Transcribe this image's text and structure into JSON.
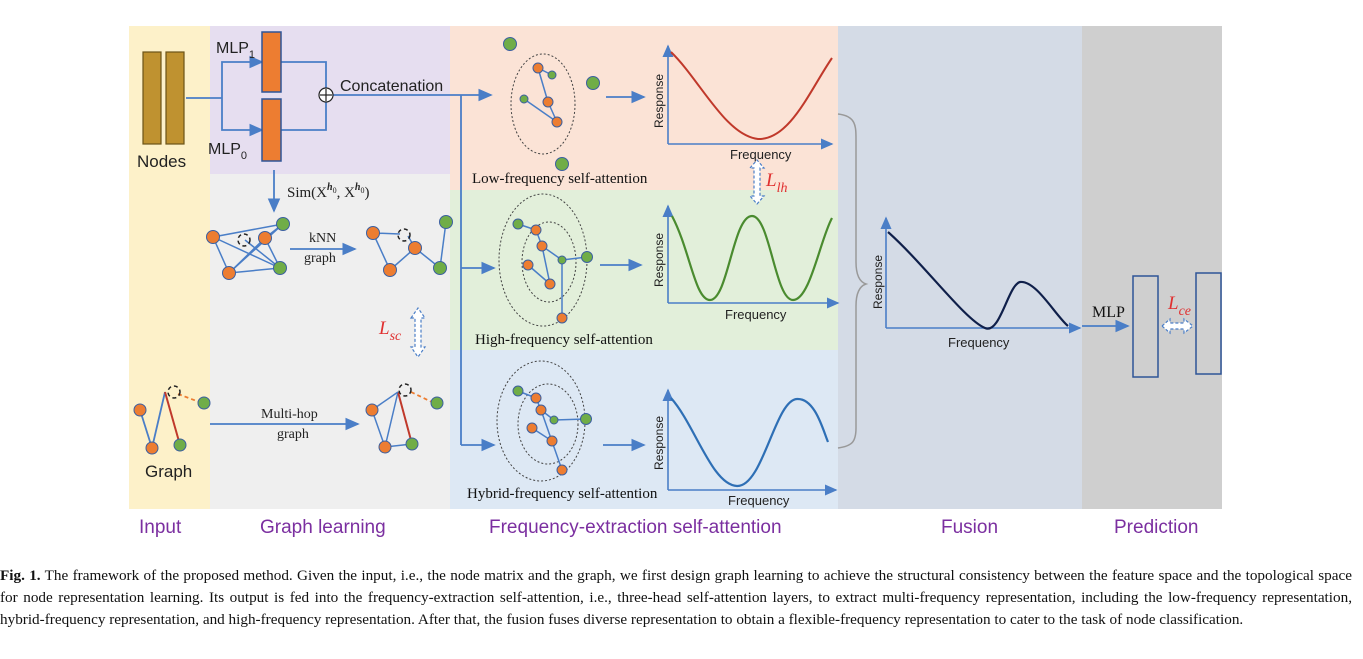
{
  "sections": {
    "input": "Input",
    "graph_learning": "Graph learning",
    "frequency_extraction": "Frequency-extraction self-attention",
    "fusion": "Fusion",
    "prediction": "Prediction"
  },
  "input_panel": {
    "nodes_label": "Nodes",
    "graph_label": "Graph"
  },
  "graph_learning_panel": {
    "mlp1_base": "MLP",
    "mlp1_sub": "1",
    "mlp0_base": "MLP",
    "mlp0_sub": "0",
    "concat_label": "Concatenation",
    "sim_label": "Sim(X",
    "sim_sup": "h",
    "sim_subsup": "0",
    "sim_mid": ", X",
    "sim_end": ")",
    "knn_line1": "kNN",
    "knn_line2": "graph",
    "multihop_line1": "Multi-hop",
    "multihop_line2": "graph",
    "lsc_base": "L",
    "lsc_sub": "sc"
  },
  "frequency_panel": {
    "low_title": "Low-frequency self-attention",
    "high_title": "High-frequency self-attention",
    "hybrid_title": "Hybrid-frequency self-attention",
    "axis_response": "Response",
    "axis_frequency": "Frequency",
    "llh_base": "L",
    "llh_sub": "lh"
  },
  "fusion_panel": {
    "axis_response": "Response",
    "axis_frequency": "Frequency"
  },
  "prediction_panel": {
    "mlp_label": "MLP",
    "lce_base": "L",
    "lce_sub": "ce"
  },
  "caption": {
    "fig_label": "Fig. 1.",
    "text": "The framework of the proposed method. Given the input, i.e., the node matrix and the graph, we first design graph learning to achieve the structural consistency between the feature space and the topological space for node representation learning. Its output is fed into the frequency-extraction self-attention, i.e., three-head self-attention layers, to extract multi-frequency representation, including the low-frequency representation, hybrid-frequency representation, and high-frequency representation. After that, the fusion fuses diverse representation to obtain a flexible-frequency representation to cater to the task of node classification."
  },
  "colors": {
    "input_bg": "#fdf1c9",
    "mlp_bg": "#e6def0",
    "graph_bg": "#efefef",
    "low_bg": "#fbe3d6",
    "high_bg": "#e2efda",
    "hybrid_bg": "#dde8f4",
    "fusion_bg": "#d4dbe6",
    "prediction_bg": "#cfcfcf",
    "orange_node": "#ed7d31",
    "green_node": "#70ad47",
    "edge_blue": "#4a7ec7",
    "low_curve": "#c0392b",
    "high_curve": "#4a8b2f",
    "hybrid_curve": "#2e6fb5",
    "fusion_curve": "#0f1f4a",
    "loss_red": "#e03030"
  }
}
